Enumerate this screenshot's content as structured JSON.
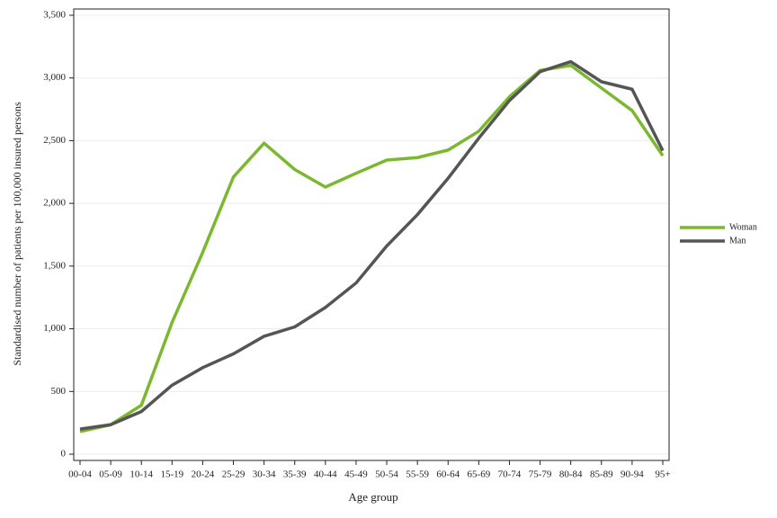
{
  "chart_data": {
    "type": "line",
    "x_label": "Age group",
    "y_label": "Standardised number of patients per 100,000 insured persons",
    "categories": [
      "00-04",
      "05-09",
      "10-14",
      "15-19",
      "20-24",
      "25-29",
      "30-34",
      "35-39",
      "40-44",
      "45-49",
      "50-54",
      "55-59",
      "60-64",
      "65-69",
      "70-74",
      "75-79",
      "80-84",
      "85-89",
      "90-94",
      "95+"
    ],
    "series": [
      {
        "name": "Woman",
        "color": "#7cb82f",
        "values": [
          180,
          235,
          390,
          1050,
          1610,
          2210,
          2480,
          2270,
          2130,
          2240,
          2345,
          2365,
          2425,
          2575,
          2850,
          3060,
          3100,
          2920,
          2740,
          2380
        ]
      },
      {
        "name": "Man",
        "color": "#555555",
        "values": [
          200,
          235,
          340,
          550,
          690,
          800,
          940,
          1015,
          1170,
          1365,
          1660,
          1910,
          2200,
          2520,
          2820,
          3050,
          3130,
          2970,
          2910,
          2420
        ]
      }
    ],
    "ylim": [
      -50,
      3550
    ],
    "yticks": [
      0,
      500,
      {
        "value": 1000,
        "label": "1,000"
      },
      {
        "value": 1500,
        "label": "1,500"
      },
      {
        "value": 2000,
        "label": "2,000"
      },
      {
        "value": 2500,
        "label": "2,500"
      },
      {
        "value": 3000,
        "label": "3,000"
      },
      {
        "value": 3500,
        "label": "3,500"
      }
    ],
    "grid": true,
    "legend": "right"
  }
}
